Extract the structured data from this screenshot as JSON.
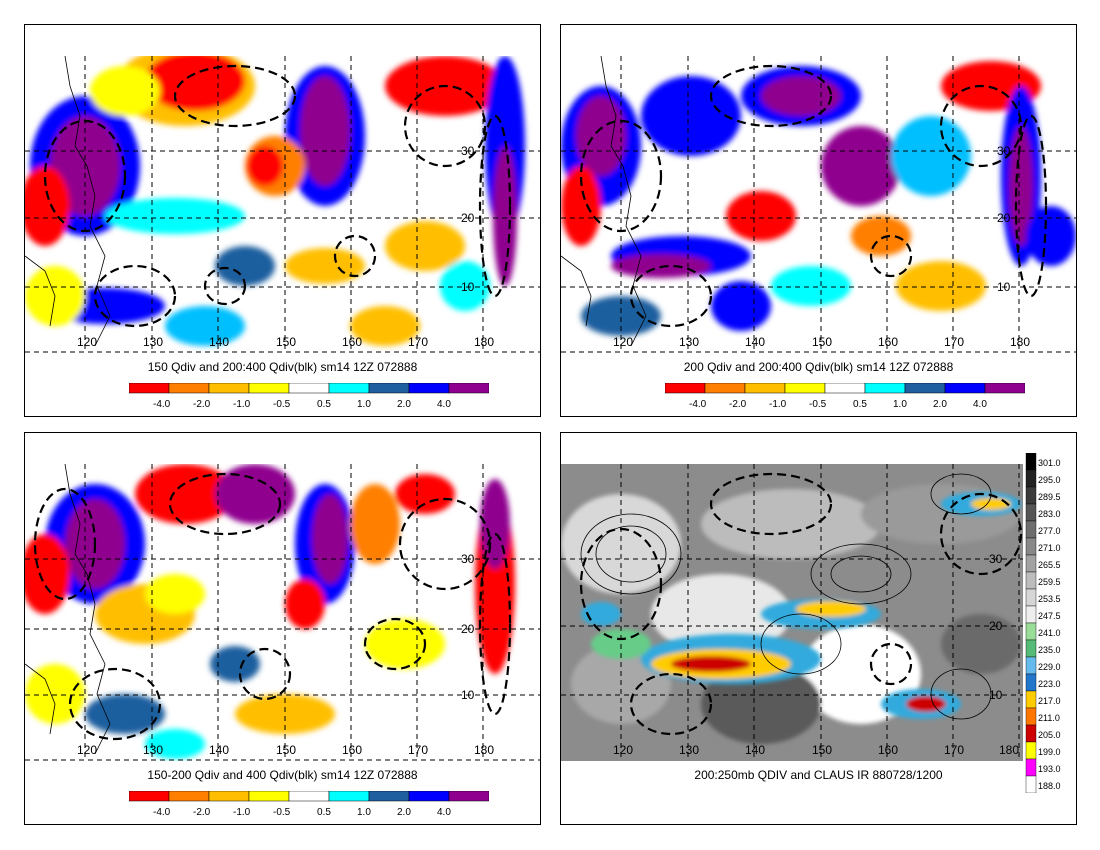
{
  "panels": [
    {
      "caption": "150 Qdiv and 200:400 Qdiv(blk) sm14 12Z 072888",
      "lon_labels": [
        "120",
        "130",
        "140",
        "150",
        "160",
        "170",
        "180"
      ],
      "lat_labels": [
        "30",
        "20",
        "10"
      ],
      "legend_labels": [
        "-4.0",
        "-2.0",
        "-1.0",
        "-0.5",
        "0.5",
        "1.0",
        "2.0",
        "4.0"
      ]
    },
    {
      "caption": "200 Qdiv and 200:400 Qdiv(blk) sm14 12Z 072888",
      "lon_labels": [
        "120",
        "130",
        "140",
        "150",
        "160",
        "170",
        "180"
      ],
      "lat_labels": [
        "30",
        "20",
        "10"
      ],
      "legend_labels": [
        "-4.0",
        "-2.0",
        "-1.0",
        "-0.5",
        "0.5",
        "1.0",
        "2.0",
        "4.0"
      ]
    },
    {
      "caption": "150-200 Qdiv and 400 Qdiv(blk) sm14 12Z 072888",
      "lon_labels": [
        "120",
        "130",
        "140",
        "150",
        "160",
        "170",
        "180"
      ],
      "lat_labels": [
        "30",
        "20",
        "10"
      ],
      "legend_labels": [
        "-4.0",
        "-2.0",
        "-1.0",
        "-0.5",
        "0.5",
        "1.0",
        "2.0",
        "4.0"
      ]
    },
    {
      "caption": "200:250mb QDIV and CLAUS IR 880728/1200",
      "lon_labels": [
        "120",
        "130",
        "140",
        "150",
        "160",
        "170",
        "180"
      ],
      "lat_labels": [
        "30",
        "20",
        "10"
      ],
      "ir_legend_labels": [
        "301.0",
        "295.0",
        "289.5",
        "283.0",
        "277.0",
        "271.0",
        "265.5",
        "259.5",
        "253.5",
        "247.5",
        "241.0",
        "235.0",
        "229.0",
        "223.0",
        "217.0",
        "211.0",
        "205.0",
        "199.0",
        "193.0",
        "188.0"
      ]
    }
  ],
  "colors": {
    "qdiv_scale": [
      "#ff0000",
      "#ff7f00",
      "#ffbf00",
      "#ffff00",
      "#ffffff",
      "#00ffff",
      "#00bfff",
      "#1f5f9f",
      "#0000ff",
      "#8f008f"
    ]
  }
}
